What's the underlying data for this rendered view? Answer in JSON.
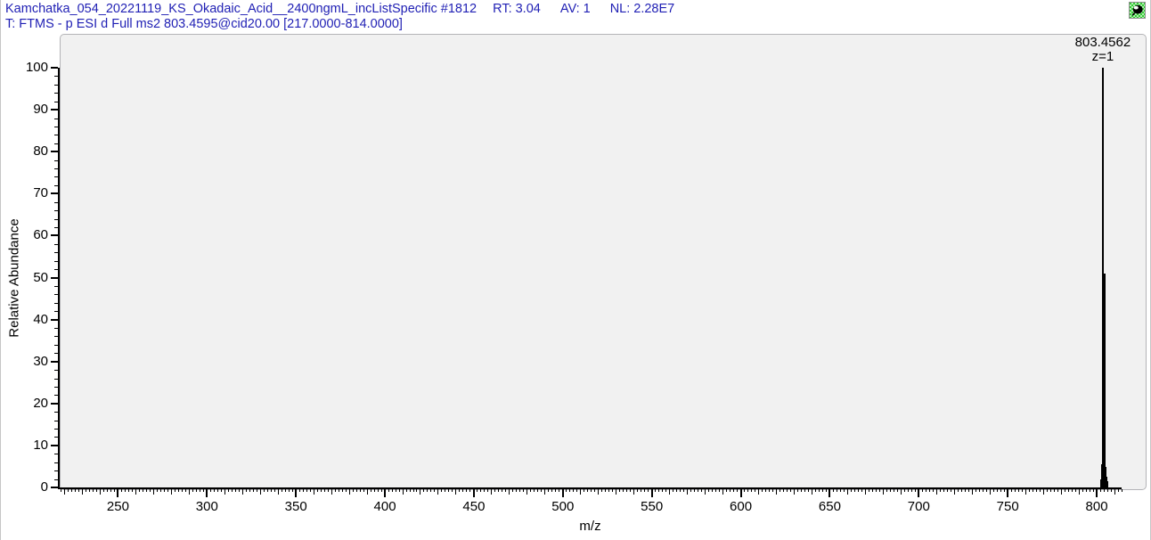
{
  "header": {
    "file_info": "Kamchatka_054_20221119_KS_Okadaic_Acid__2400ngmL_incListSpecific",
    "scan_number": "#1812",
    "rt_label": "RT:",
    "rt_value": "3.04",
    "av_label": "AV:",
    "av_value": "1",
    "nl_label": "NL:",
    "nl_value": "2.28E7",
    "scan_filter": "T: FTMS - p ESI d Full ms2 803.4595@cid20.00 [217.0000-814.0000]"
  },
  "toolbar": {
    "pin_icon_name": "pin-cell-icon"
  },
  "colors": {
    "header_text": "#1f1fb4",
    "peak_line": "#000000",
    "panel_background": "#f1f1f1",
    "panel_border": "#b4b4b7",
    "pin_green_dark": "#33cc33",
    "pin_green_light": "#b3f0b3"
  },
  "chart_data": {
    "type": "bar",
    "subtype": "mass-spectrum",
    "title": "",
    "xlabel": "m/z",
    "ylabel": "Relative Abundance",
    "xlim": [
      217,
      814
    ],
    "ylim": [
      0,
      100
    ],
    "grid": false,
    "x_major_ticks": [
      250,
      300,
      350,
      400,
      450,
      500,
      550,
      600,
      650,
      700,
      750,
      800
    ],
    "x_medium_tick_step": 10,
    "x_minor_tick_step": 2,
    "y_major_ticks": [
      0,
      10,
      20,
      30,
      40,
      50,
      60,
      70,
      80,
      90,
      100
    ],
    "y_minor_tick_step": 2,
    "peaks": [
      {
        "mz": 802.46,
        "intensity": 2.0
      },
      {
        "mz": 802.96,
        "intensity": 5.5
      },
      {
        "mz": 803.4562,
        "intensity": 100.0
      },
      {
        "mz": 803.96,
        "intensity": 4.5
      },
      {
        "mz": 804.459,
        "intensity": 51.0
      },
      {
        "mz": 804.96,
        "intensity": 4.8
      },
      {
        "mz": 805.46,
        "intensity": 2.5
      },
      {
        "mz": 805.96,
        "intensity": 1.5
      }
    ],
    "annotations": [
      {
        "mz": 803.4562,
        "lines": [
          "803.4562",
          "z=1"
        ]
      }
    ]
  }
}
